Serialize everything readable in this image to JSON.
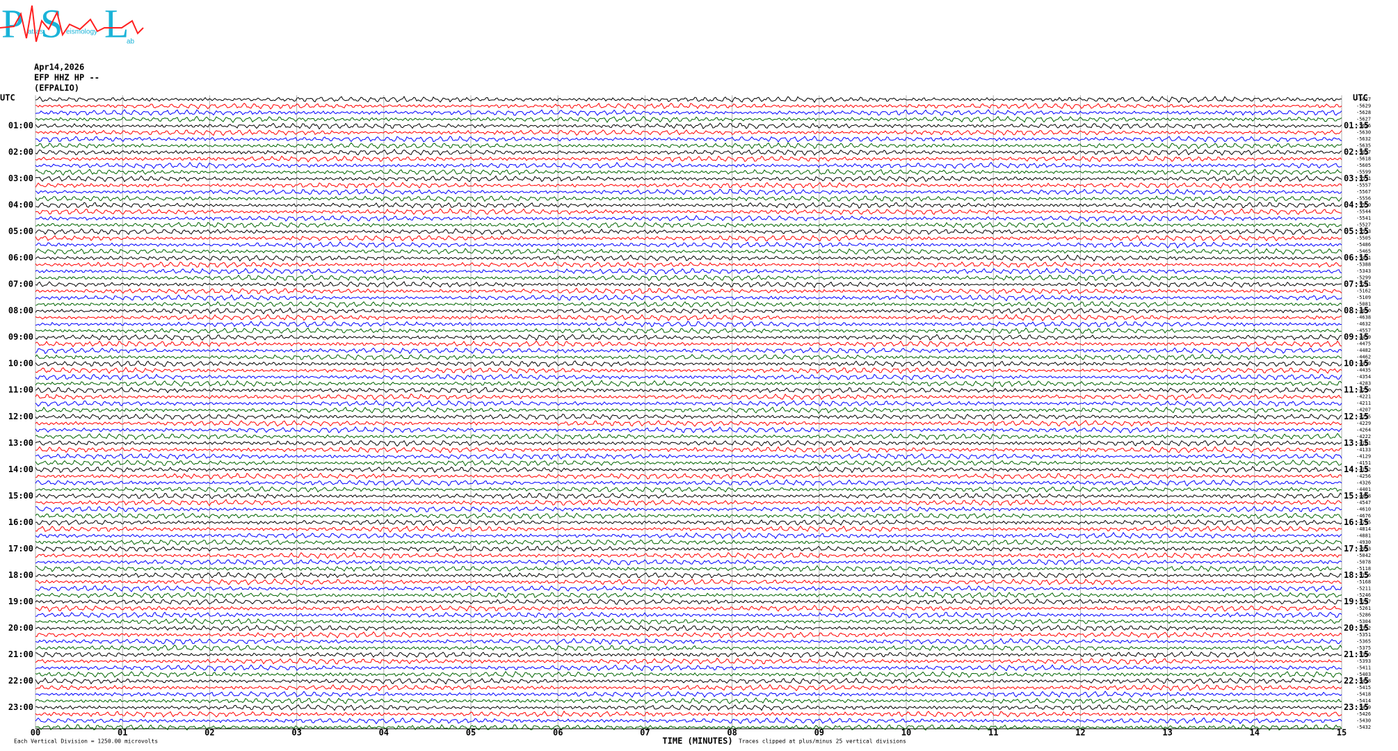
{
  "logo": {
    "letters": [
      "P",
      "S",
      "L"
    ],
    "words": [
      "atras",
      "eismology",
      "ab"
    ]
  },
  "header": {
    "date": "Apr14,2026",
    "channel": "EFP HHZ HP --",
    "station": "(EFPALIO)",
    "utc_left": "UTC",
    "utc_right": "UTC"
  },
  "helicorder": {
    "colors": [
      "#000000",
      "#ff0000",
      "#0000ff",
      "#006400"
    ],
    "row_start_labels": [
      "01:00",
      "02:00",
      "03:00",
      "04:00",
      "05:00",
      "06:00",
      "07:00",
      "08:00",
      "09:00",
      "10:00",
      "11:00",
      "12:00",
      "13:00",
      "14:00",
      "15:00",
      "16:00",
      "17:00",
      "18:00",
      "19:00",
      "20:00",
      "21:00",
      "22:00",
      "23:00"
    ],
    "row_end_labels": [
      "01:15",
      "02:15",
      "03:15",
      "04:15",
      "05:15",
      "06:15",
      "07:15",
      "08:15",
      "09:15",
      "10:15",
      "11:15",
      "12:15",
      "13:15",
      "14:15",
      "15:15",
      "16:15",
      "17:15",
      "18:15",
      "19:15",
      "20:15",
      "21:15",
      "22:15",
      "23:15"
    ],
    "offsets": [
      "-5627",
      "-5629",
      "-5628",
      "-5627",
      "-5626",
      "-5630",
      "-5632",
      "-5635",
      "-5627",
      "-5618",
      "-5605",
      "-5599",
      "-5571",
      "-5557",
      "-5567",
      "-5556",
      "-5550",
      "-5544",
      "-5541",
      "-5527",
      "-5513",
      "-5505",
      "-5486",
      "-5465",
      "-5421",
      "-5388",
      "-5343",
      "-5299",
      "-5241",
      "-5162",
      "-5109",
      "-5081",
      "-4690",
      "-4638",
      "-4632",
      "-4557",
      "-4499",
      "-4475",
      "-4482",
      "-4462",
      "-4479",
      "-4435",
      "-4354",
      "-4283",
      "-4230",
      "-4221",
      "-4211",
      "-4207",
      "-4215",
      "-4229",
      "-4264",
      "-4222",
      "-4181",
      "-4133",
      "-4129",
      "-4151",
      "-4192",
      "-4256",
      "-4326",
      "-4401",
      "-4468",
      "-4547",
      "-4610",
      "-4676",
      "-4745",
      "-4814",
      "-4881",
      "-4930",
      "-4993",
      "-5042",
      "-5078",
      "-5118",
      "-5156",
      "-5168",
      "-5211",
      "-5246",
      "-5247",
      "-5261",
      "-5286",
      "-5304",
      "-5332",
      "-5351",
      "-5365",
      "-5375",
      "-5390",
      "-5393",
      "-5411",
      "-5403",
      "-5418",
      "-5415",
      "-5418",
      "-5414",
      "-5419",
      "-5426",
      "-5430",
      "-5432"
    ],
    "minute_labels": [
      "00",
      "01",
      "02",
      "03",
      "04",
      "05",
      "06",
      "07",
      "08",
      "09",
      "10",
      "11",
      "12",
      "13",
      "14",
      "15"
    ],
    "x_title": "TIME (MINUTES)",
    "clip_note": "Traces clipped at plus/minus 25 vertical divisions",
    "scale_note": "Each Vertical Division = 1250.00 microvolts"
  }
}
